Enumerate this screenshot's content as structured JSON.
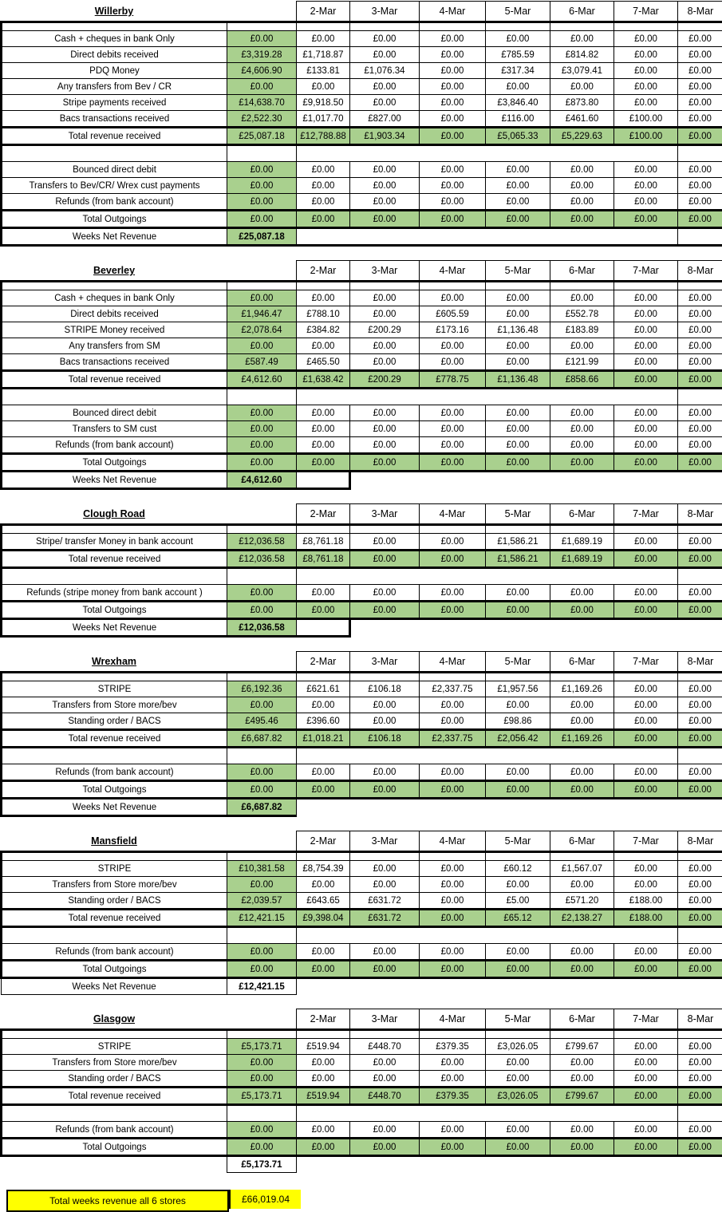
{
  "columns": [
    "2-Mar",
    "3-Mar",
    "4-Mar",
    "5-Mar",
    "6-Mar",
    "7-Mar",
    "8-Mar"
  ],
  "colors": {
    "highlight_green": "#A9D08E",
    "highlight_yellow": "#FFFF00",
    "grid_border": "#000000"
  },
  "sections": [
    {
      "title": "Willerby",
      "rows": [
        {
          "t": "d",
          "label": "Cash + cheques in bank Only",
          "week": "£0.00",
          "days": [
            "£0.00",
            "£0.00",
            "£0.00",
            "£0.00",
            "£0.00",
            "£0.00",
            "£0.00"
          ]
        },
        {
          "t": "d",
          "label": "Direct debits received",
          "week": "£3,319.28",
          "days": [
            "£1,718.87",
            "£0.00",
            "£0.00",
            "£785.59",
            "£814.82",
            "£0.00",
            "£0.00"
          ]
        },
        {
          "t": "d",
          "label": "PDQ Money",
          "week": "£4,606.90",
          "days": [
            "£133.81",
            "£1,076.34",
            "£0.00",
            "£317.34",
            "£3,079.41",
            "£0.00",
            "£0.00"
          ]
        },
        {
          "t": "d",
          "label": "Any transfers from Bev / CR",
          "week": "£0.00",
          "days": [
            "£0.00",
            "£0.00",
            "£0.00",
            "£0.00",
            "£0.00",
            "£0.00",
            "£0.00"
          ]
        },
        {
          "t": "d",
          "label": "Stripe payments received",
          "week": "£14,638.70",
          "days": [
            "£9,918.50",
            "£0.00",
            "£0.00",
            "£3,846.40",
            "£873.80",
            "£0.00",
            "£0.00"
          ]
        },
        {
          "t": "d",
          "label": "Bacs transactions received",
          "week": "£2,522.30",
          "days": [
            "£1,017.70",
            "£827.00",
            "£0.00",
            "£116.00",
            "£461.60",
            "£100.00",
            "£0.00"
          ]
        },
        {
          "t": "t",
          "label": "Total revenue received",
          "week": "£25,087.18",
          "days": [
            "£12,788.88",
            "£1,903.34",
            "£0.00",
            "£5,065.33",
            "£5,229.63",
            "£100.00",
            "£0.00"
          ]
        },
        {
          "t": "blank"
        },
        {
          "t": "d",
          "label": "Bounced direct debit",
          "week": "£0.00",
          "days": [
            "£0.00",
            "£0.00",
            "£0.00",
            "£0.00",
            "£0.00",
            "£0.00",
            "£0.00"
          ]
        },
        {
          "t": "d",
          "label": "Transfers to Bev/CR/ Wrex  cust payments",
          "week": "£0.00",
          "days": [
            "£0.00",
            "£0.00",
            "£0.00",
            "£0.00",
            "£0.00",
            "£0.00",
            "£0.00"
          ]
        },
        {
          "t": "d",
          "label": "Refunds (from bank account)",
          "week": "£0.00",
          "days": [
            "£0.00",
            "£0.00",
            "£0.00",
            "£0.00",
            "£0.00",
            "£0.00",
            "£0.00"
          ]
        },
        {
          "t": "t",
          "label": "Total Outgoings",
          "week": "£0.00",
          "days": [
            "£0.00",
            "£0.00",
            "£0.00",
            "£0.00",
            "£0.00",
            "£0.00",
            "£0.00"
          ]
        }
      ],
      "net": {
        "label": "Weeks Net Revenue",
        "value": "£25,087.18",
        "fill": "green",
        "stub": "last",
        "thick": true
      }
    },
    {
      "title": "Beverley",
      "rows": [
        {
          "t": "d",
          "label": "Cash + cheques in bank Only",
          "week": "£0.00",
          "days": [
            "£0.00",
            "£0.00",
            "£0.00",
            "£0.00",
            "£0.00",
            "£0.00",
            "£0.00"
          ]
        },
        {
          "t": "d",
          "label": "Direct debits received",
          "week": "£1,946.47",
          "days": [
            "£788.10",
            "£0.00",
            "£605.59",
            "£0.00",
            "£552.78",
            "£0.00",
            "£0.00"
          ]
        },
        {
          "t": "d",
          "label": "STRIPE Money received",
          "week": "£2,078.64",
          "days": [
            "£384.82",
            "£200.29",
            "£173.16",
            "£1,136.48",
            "£183.89",
            "£0.00",
            "£0.00"
          ]
        },
        {
          "t": "d",
          "label": "Any transfers from SM",
          "week": "£0.00",
          "days": [
            "£0.00",
            "£0.00",
            "£0.00",
            "£0.00",
            "£0.00",
            "£0.00",
            "£0.00"
          ]
        },
        {
          "t": "d",
          "label": "Bacs transactions received",
          "week": "£587.49",
          "days": [
            "£465.50",
            "£0.00",
            "£0.00",
            "£0.00",
            "£121.99",
            "£0.00",
            "£0.00"
          ]
        },
        {
          "t": "t",
          "label": "Total revenue received",
          "week": "£4,612.60",
          "days": [
            "£1,638.42",
            "£200.29",
            "£778.75",
            "£1,136.48",
            "£858.66",
            "£0.00",
            "£0.00"
          ]
        },
        {
          "t": "blank"
        },
        {
          "t": "d",
          "label": "Bounced direct debit",
          "week": "£0.00",
          "days": [
            "£0.00",
            "£0.00",
            "£0.00",
            "£0.00",
            "£0.00",
            "£0.00",
            "£0.00"
          ]
        },
        {
          "t": "d",
          "label": "Transfers to SM cust",
          "week": "£0.00",
          "days": [
            "£0.00",
            "£0.00",
            "£0.00",
            "£0.00",
            "£0.00",
            "£0.00",
            "£0.00"
          ]
        },
        {
          "t": "d",
          "label": "Refunds (from bank account)",
          "week": "£0.00",
          "days": [
            "£0.00",
            "£0.00",
            "£0.00",
            "£0.00",
            "£0.00",
            "£0.00",
            "£0.00"
          ]
        },
        {
          "t": "t",
          "label": "Total Outgoings",
          "week": "£0.00",
          "days": [
            "£0.00",
            "£0.00",
            "£0.00",
            "£0.00",
            "£0.00",
            "£0.00",
            "£0.00"
          ]
        }
      ],
      "net": {
        "label": "Weeks Net Revenue",
        "value": "£4,612.60",
        "fill": "green",
        "stub": "first",
        "thick": true
      }
    },
    {
      "title": "Clough Road",
      "rows": [
        {
          "t": "d",
          "label": "Stripe/ transfer Money  in bank account",
          "week": "£12,036.58",
          "days": [
            "£8,761.18",
            "£0.00",
            "£0.00",
            "£1,586.21",
            "£1,689.19",
            "£0.00",
            "£0.00"
          ]
        },
        {
          "t": "t",
          "label": "Total revenue received",
          "week": "£12,036.58",
          "days": [
            "£8,761.18",
            "£0.00",
            "£0.00",
            "£1,586.21",
            "£1,689.19",
            "£0.00",
            "£0.00"
          ]
        },
        {
          "t": "blank"
        },
        {
          "t": "d",
          "label": "Refunds (stripe money from bank account )",
          "week": "£0.00",
          "days": [
            "£0.00",
            "£0.00",
            "£0.00",
            "£0.00",
            "£0.00",
            "£0.00",
            "£0.00"
          ]
        },
        {
          "t": "t",
          "label": "Total Outgoings",
          "week": "£0.00",
          "days": [
            "£0.00",
            "£0.00",
            "£0.00",
            "£0.00",
            "£0.00",
            "£0.00",
            "£0.00"
          ]
        }
      ],
      "net": {
        "label": "Weeks Net Revenue",
        "value": "£12,036.58",
        "fill": "green",
        "stub": "first",
        "thick": true
      }
    },
    {
      "title": "Wrexham",
      "rows": [
        {
          "t": "d",
          "label": "STRIPE",
          "week": "£6,192.36",
          "days": [
            "£621.61",
            "£106.18",
            "£2,337.75",
            "£1,957.56",
            "£1,169.26",
            "£0.00",
            "£0.00"
          ]
        },
        {
          "t": "d",
          "label": "Transfers from Store more/bev",
          "week": "£0.00",
          "days": [
            "£0.00",
            "£0.00",
            "£0.00",
            "£0.00",
            "£0.00",
            "£0.00",
            "£0.00"
          ]
        },
        {
          "t": "d",
          "label": "Standing order / BACS",
          "week": "£495.46",
          "days": [
            "£396.60",
            "£0.00",
            "£0.00",
            "£98.86",
            "£0.00",
            "£0.00",
            "£0.00"
          ]
        },
        {
          "t": "t",
          "label": "Total revenue received",
          "week": "£6,687.82",
          "days": [
            "£1,018.21",
            "£106.18",
            "£2,337.75",
            "£2,056.42",
            "£1,169.26",
            "£0.00",
            "£0.00"
          ]
        },
        {
          "t": "blank"
        },
        {
          "t": "d",
          "label": "Refunds (from bank account)",
          "week": "£0.00",
          "days": [
            "£0.00",
            "£0.00",
            "£0.00",
            "£0.00",
            "£0.00",
            "£0.00",
            "£0.00"
          ]
        },
        {
          "t": "t",
          "label": "Total Outgoings",
          "week": "£0.00",
          "days": [
            "£0.00",
            "£0.00",
            "£0.00",
            "£0.00",
            "£0.00",
            "£0.00",
            "£0.00"
          ]
        }
      ],
      "net": {
        "label": "Weeks Net Revenue",
        "value": "£6,687.82",
        "fill": "green",
        "stub": "none",
        "thick": true
      }
    },
    {
      "title": "Mansfield",
      "rows": [
        {
          "t": "d",
          "label": "STRIPE",
          "week": "£10,381.58",
          "days": [
            "£8,754.39",
            "£0.00",
            "£0.00",
            "£60.12",
            "£1,567.07",
            "£0.00",
            "£0.00"
          ]
        },
        {
          "t": "d",
          "label": "Transfers from Store more/bev",
          "week": "£0.00",
          "days": [
            "£0.00",
            "£0.00",
            "£0.00",
            "£0.00",
            "£0.00",
            "£0.00",
            "£0.00"
          ]
        },
        {
          "t": "d",
          "label": "Standing order / BACS",
          "week": "£2,039.57",
          "days": [
            "£643.65",
            "£631.72",
            "£0.00",
            "£5.00",
            "£571.20",
            "£188.00",
            "£0.00"
          ]
        },
        {
          "t": "t",
          "label": "Total revenue received",
          "week": "£12,421.15",
          "days": [
            "£9,398.04",
            "£631.72",
            "£0.00",
            "£65.12",
            "£2,138.27",
            "£188.00",
            "£0.00"
          ]
        },
        {
          "t": "blank"
        },
        {
          "t": "d",
          "label": "Refunds (from bank account)",
          "week": "£0.00",
          "days": [
            "£0.00",
            "£0.00",
            "£0.00",
            "£0.00",
            "£0.00",
            "£0.00",
            "£0.00"
          ]
        },
        {
          "t": "t",
          "label": "Total Outgoings",
          "week": "£0.00",
          "days": [
            "£0.00",
            "£0.00",
            "£0.00",
            "£0.00",
            "£0.00",
            "£0.00",
            "£0.00"
          ]
        }
      ],
      "net": {
        "label": "Weeks Net Revenue",
        "value": "£12,421.15",
        "fill": "white",
        "stub": "none",
        "thick": false
      }
    },
    {
      "title": "Glasgow",
      "rows": [
        {
          "t": "d",
          "label": "STRIPE",
          "week": "£5,173.71",
          "days": [
            "£519.94",
            "£448.70",
            "£379.35",
            "£3,026.05",
            "£799.67",
            "£0.00",
            "£0.00"
          ]
        },
        {
          "t": "d",
          "label": "Transfers from Store more/bev",
          "week": "£0.00",
          "days": [
            "£0.00",
            "£0.00",
            "£0.00",
            "£0.00",
            "£0.00",
            "£0.00",
            "£0.00"
          ]
        },
        {
          "t": "d",
          "label": "Standing order / BACS",
          "week": "£0.00",
          "days": [
            "£0.00",
            "£0.00",
            "£0.00",
            "£0.00",
            "£0.00",
            "£0.00",
            "£0.00"
          ]
        },
        {
          "t": "t",
          "label": "Total revenue received",
          "week": "£5,173.71",
          "days": [
            "£519.94",
            "£448.70",
            "£379.35",
            "£3,026.05",
            "£799.67",
            "£0.00",
            "£0.00"
          ]
        },
        {
          "t": "blank"
        },
        {
          "t": "d",
          "label": "Refunds (from bank account)",
          "week": "£0.00",
          "days": [
            "£0.00",
            "£0.00",
            "£0.00",
            "£0.00",
            "£0.00",
            "£0.00",
            "£0.00"
          ]
        },
        {
          "t": "t",
          "label": "Total Outgoings",
          "week": "£0.00",
          "days": [
            "£0.00",
            "£0.00",
            "£0.00",
            "£0.00",
            "£0.00",
            "£0.00",
            "£0.00"
          ]
        }
      ],
      "net": {
        "label": "",
        "value": "£5,173.71",
        "fill": "white",
        "stub": "none",
        "thick": false
      }
    }
  ],
  "grand_total": {
    "label": "Total weeks revenue all 6 stores",
    "value": "£66,019.04"
  }
}
